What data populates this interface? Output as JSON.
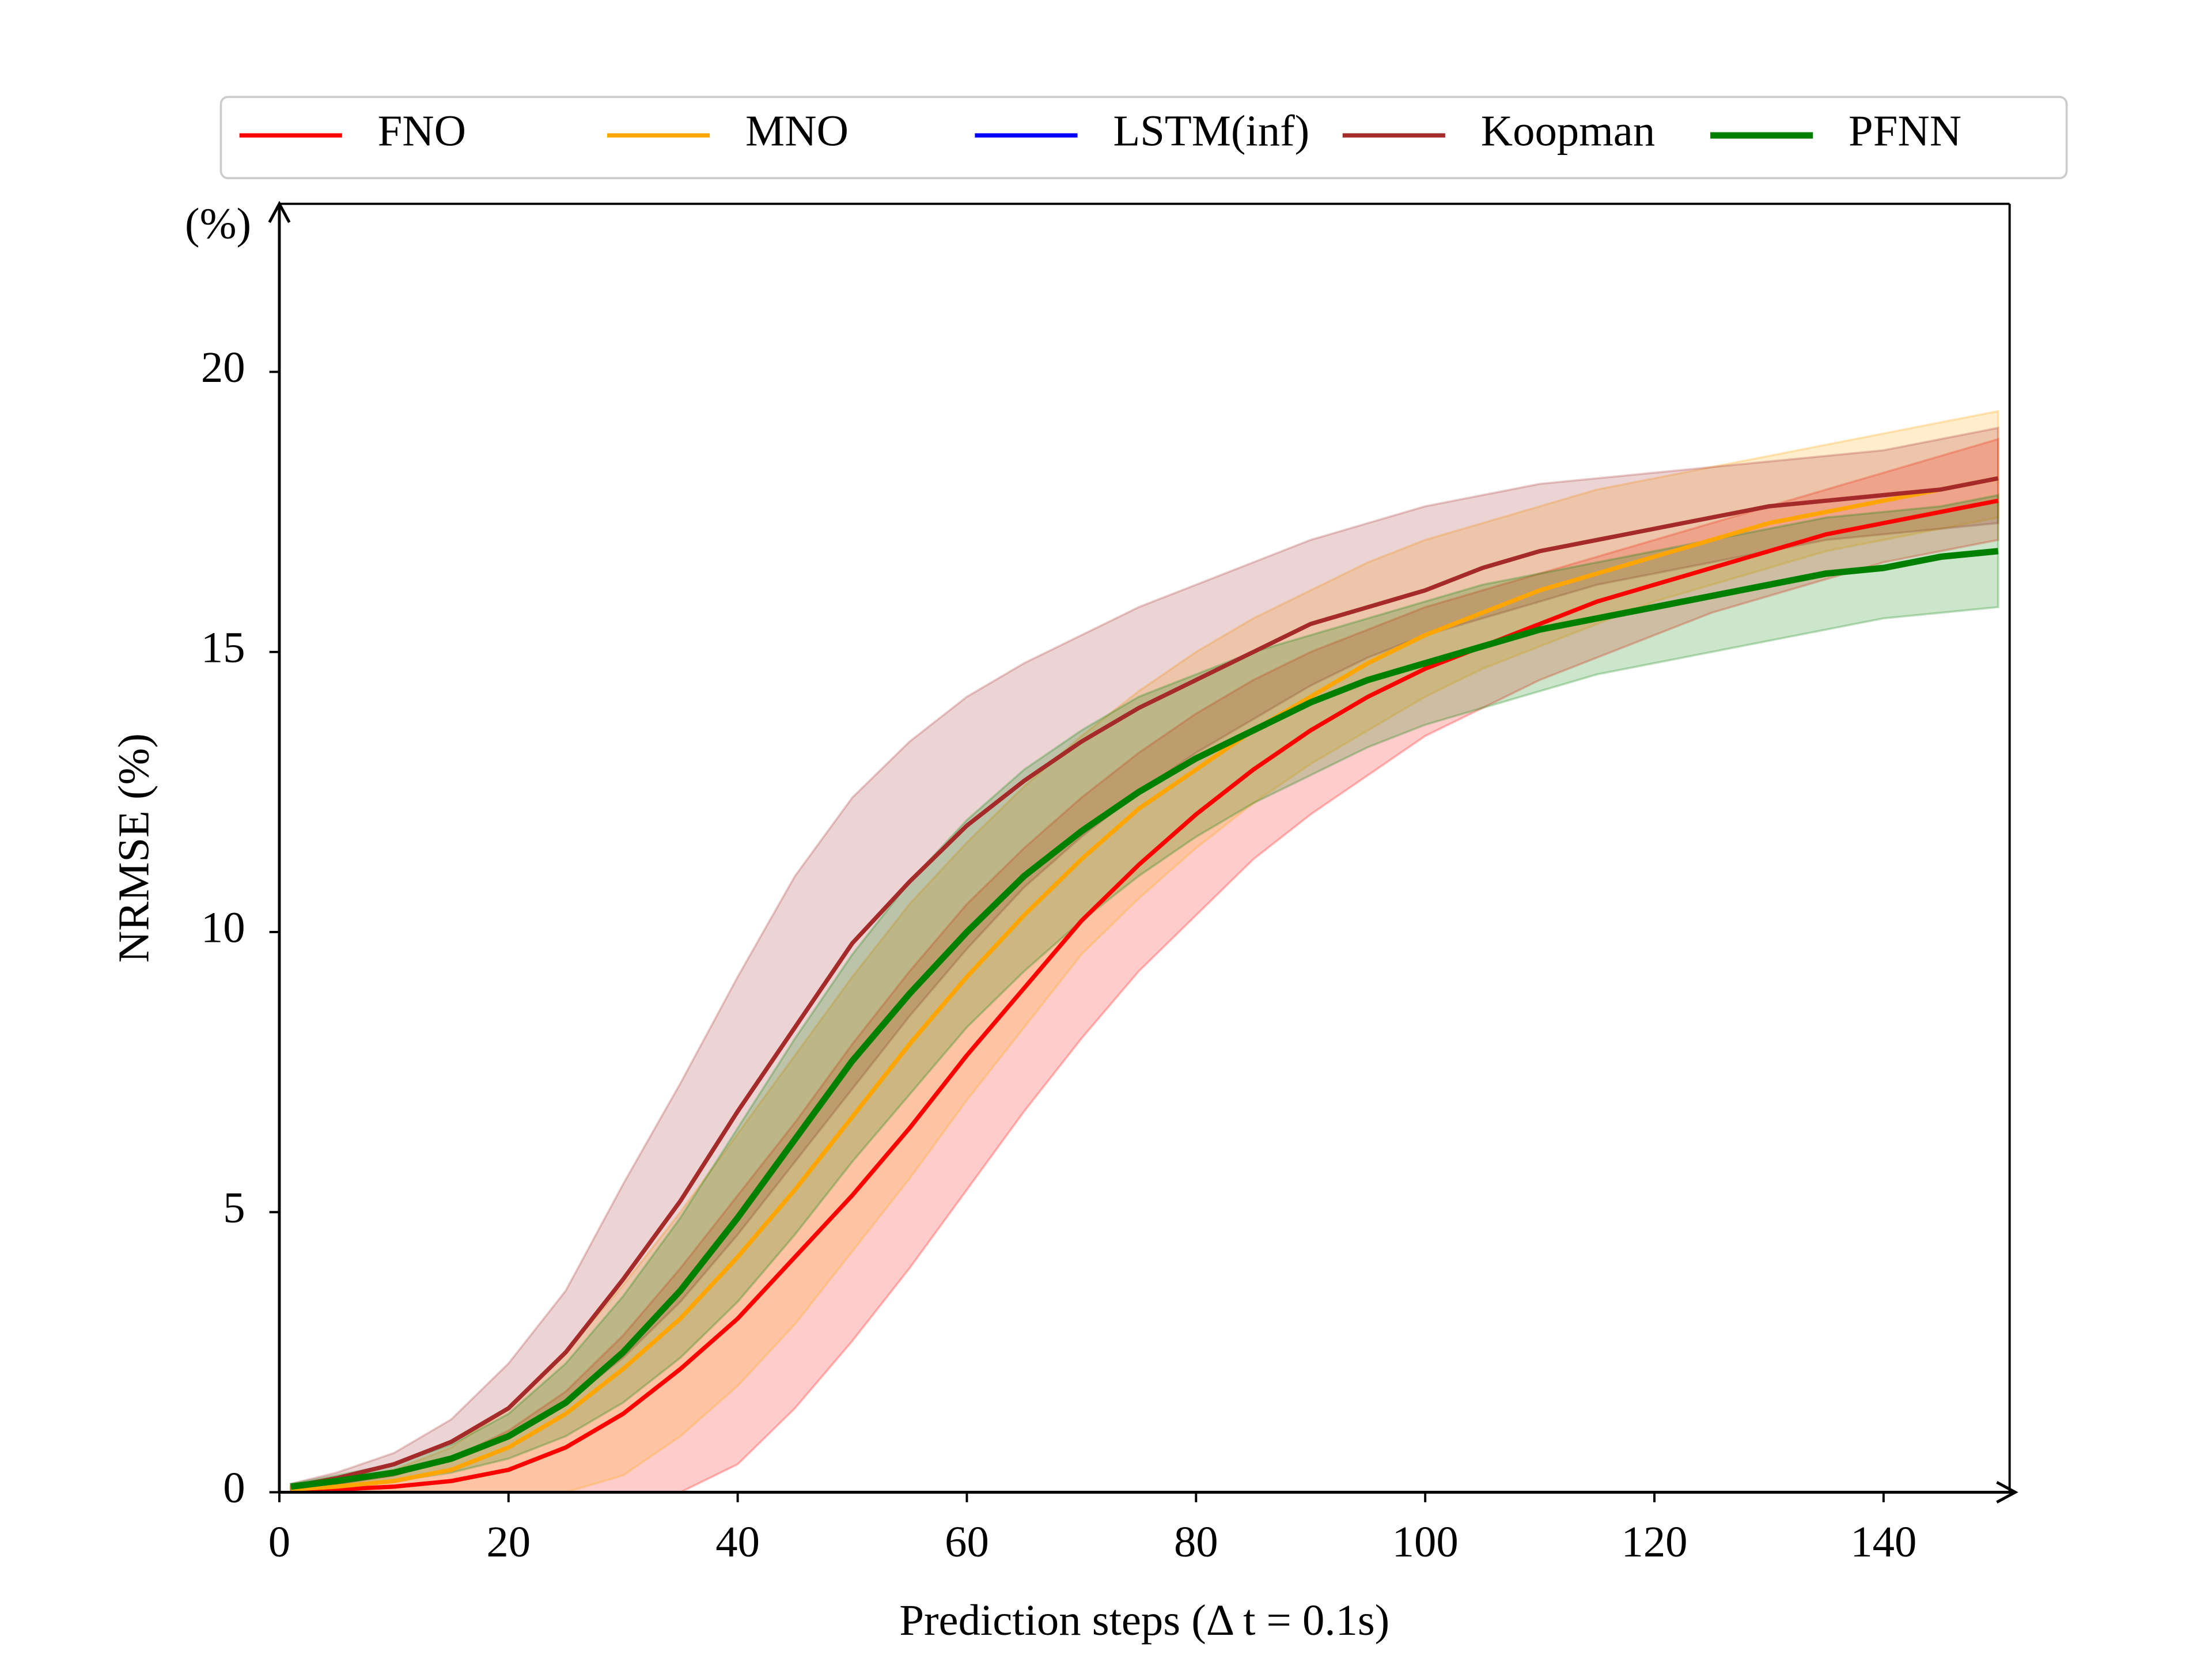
{
  "chart_data": {
    "type": "line",
    "y_label": "NRMSE (%)",
    "x_label": "Prediction steps (Δ t = 0.1s)",
    "annotation": "(%)",
    "x": [
      1,
      5,
      10,
      15,
      20,
      25,
      30,
      35,
      40,
      45,
      50,
      55,
      60,
      65,
      70,
      75,
      80,
      85,
      90,
      95,
      100,
      105,
      110,
      115,
      120,
      125,
      130,
      135,
      140,
      145,
      150
    ],
    "xlim": [
      0,
      151
    ],
    "xticks": [
      0,
      20,
      40,
      60,
      80,
      100,
      120,
      140
    ],
    "ylim": [
      0,
      23
    ],
    "yticks": [
      0,
      5,
      10,
      15,
      20
    ],
    "grid": false,
    "legend": "top",
    "series": [
      {
        "name": "FNO",
        "color": "#ff0000",
        "values": [
          0.05,
          0.05,
          0.1,
          0.2,
          0.4,
          0.8,
          1.4,
          2.2,
          3.1,
          4.2,
          5.3,
          6.5,
          7.8,
          9.0,
          10.2,
          11.2,
          12.1,
          12.9,
          13.6,
          14.2,
          14.7,
          15.1,
          15.5,
          15.9,
          16.2,
          16.5,
          16.8,
          17.1,
          17.3,
          17.5,
          17.7
        ],
        "lower": [
          0,
          0,
          0,
          0,
          0,
          0,
          0,
          0,
          0.5,
          1.5,
          2.7,
          4.0,
          5.4,
          6.8,
          8.1,
          9.3,
          10.3,
          11.3,
          12.1,
          12.8,
          13.5,
          14.0,
          14.5,
          14.9,
          15.3,
          15.7,
          16.0,
          16.3,
          16.6,
          16.8,
          17.0
        ],
        "upper": [
          0.1,
          0.15,
          0.3,
          0.6,
          1.1,
          1.8,
          2.8,
          4.0,
          5.3,
          6.6,
          8.0,
          9.3,
          10.5,
          11.5,
          12.4,
          13.2,
          13.9,
          14.5,
          15.0,
          15.4,
          15.8,
          16.1,
          16.4,
          16.7,
          17.0,
          17.3,
          17.6,
          17.9,
          18.2,
          18.5,
          18.8
        ]
      },
      {
        "name": "MNO",
        "color": "#ffa500",
        "values": [
          0.05,
          0.1,
          0.2,
          0.4,
          0.8,
          1.4,
          2.2,
          3.1,
          4.2,
          5.4,
          6.7,
          8.0,
          9.2,
          10.3,
          11.3,
          12.2,
          12.9,
          13.6,
          14.2,
          14.8,
          15.3,
          15.7,
          16.1,
          16.4,
          16.7,
          17.0,
          17.3,
          17.5,
          17.7,
          17.9,
          18.1
        ],
        "lower": [
          0,
          0,
          0,
          0,
          0,
          0,
          0.3,
          1.0,
          1.9,
          3.0,
          4.3,
          5.6,
          7.0,
          8.3,
          9.6,
          10.6,
          11.5,
          12.3,
          13.0,
          13.6,
          14.2,
          14.7,
          15.1,
          15.5,
          15.9,
          16.2,
          16.5,
          16.8,
          17.0,
          17.2,
          17.4
        ],
        "upper": [
          0.1,
          0.2,
          0.4,
          0.8,
          1.5,
          2.5,
          3.7,
          5.0,
          6.4,
          7.8,
          9.2,
          10.5,
          11.6,
          12.6,
          13.5,
          14.3,
          15.0,
          15.6,
          16.1,
          16.6,
          17.0,
          17.3,
          17.6,
          17.9,
          18.1,
          18.3,
          18.5,
          18.7,
          18.9,
          19.1,
          19.3
        ]
      },
      {
        "name": "LSTM(inf)",
        "color": "#0000ff",
        "values": [
          null,
          null,
          null,
          null,
          null,
          null,
          null,
          null,
          null,
          null,
          null,
          null,
          null,
          null,
          null,
          null,
          null,
          null,
          null,
          null,
          null,
          null,
          null,
          null,
          null,
          null,
          null,
          null,
          null,
          null,
          null
        ]
      },
      {
        "name": "Koopman",
        "color": "#a52a2a",
        "values": [
          0.1,
          0.25,
          0.5,
          0.9,
          1.5,
          2.5,
          3.8,
          5.2,
          6.8,
          8.3,
          9.8,
          10.9,
          11.9,
          12.7,
          13.4,
          14.0,
          14.5,
          15.0,
          15.5,
          15.8,
          16.1,
          16.5,
          16.8,
          17.0,
          17.2,
          17.4,
          17.6,
          17.7,
          17.8,
          17.9,
          18.1
        ],
        "lower": [
          0.05,
          0.15,
          0.3,
          0.6,
          1.0,
          1.6,
          2.4,
          3.4,
          4.6,
          5.9,
          7.2,
          8.5,
          9.7,
          10.8,
          11.7,
          12.5,
          13.2,
          13.8,
          14.4,
          14.9,
          15.3,
          15.6,
          15.9,
          16.2,
          16.4,
          16.6,
          16.8,
          17.0,
          17.1,
          17.2,
          17.3
        ],
        "upper": [
          0.15,
          0.35,
          0.7,
          1.3,
          2.3,
          3.6,
          5.5,
          7.3,
          9.2,
          11.0,
          12.4,
          13.4,
          14.2,
          14.8,
          15.3,
          15.8,
          16.2,
          16.6,
          17.0,
          17.3,
          17.6,
          17.8,
          18.0,
          18.1,
          18.2,
          18.3,
          18.4,
          18.5,
          18.6,
          18.8,
          19.0
        ]
      },
      {
        "name": "PFNN",
        "color": "#008000",
        "values": [
          0.1,
          0.2,
          0.35,
          0.6,
          1.0,
          1.6,
          2.5,
          3.6,
          4.9,
          6.3,
          7.7,
          8.9,
          10.0,
          11.0,
          11.8,
          12.5,
          13.1,
          13.6,
          14.1,
          14.5,
          14.8,
          15.1,
          15.4,
          15.6,
          15.8,
          16.0,
          16.2,
          16.4,
          16.5,
          16.7,
          16.8
        ],
        "lower": [
          0.05,
          0.1,
          0.2,
          0.35,
          0.6,
          1.0,
          1.6,
          2.4,
          3.4,
          4.6,
          5.9,
          7.1,
          8.3,
          9.3,
          10.2,
          11.0,
          11.7,
          12.3,
          12.8,
          13.3,
          13.7,
          14.0,
          14.3,
          14.6,
          14.8,
          15.0,
          15.2,
          15.4,
          15.6,
          15.7,
          15.8
        ],
        "upper": [
          0.15,
          0.3,
          0.5,
          0.85,
          1.4,
          2.3,
          3.5,
          4.9,
          6.5,
          8.1,
          9.6,
          10.9,
          12.0,
          12.9,
          13.6,
          14.2,
          14.6,
          15.0,
          15.3,
          15.6,
          15.9,
          16.2,
          16.4,
          16.6,
          16.8,
          17.0,
          17.2,
          17.4,
          17.5,
          17.6,
          17.8
        ]
      }
    ]
  }
}
